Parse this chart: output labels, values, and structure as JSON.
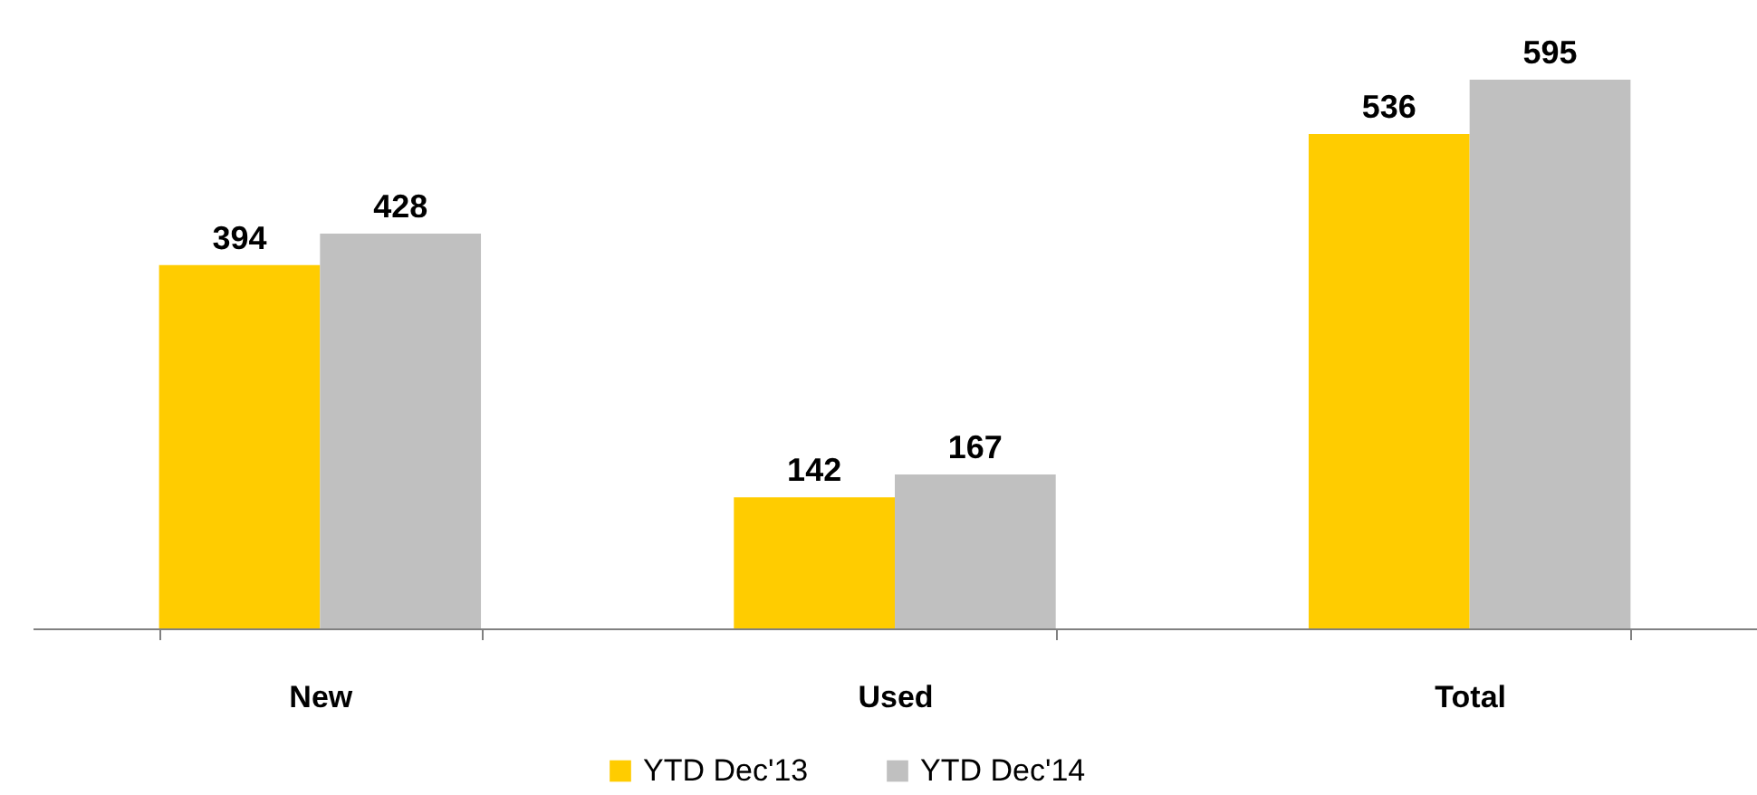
{
  "chart_data": {
    "type": "bar",
    "categories": [
      "New",
      "Used",
      "Total"
    ],
    "series": [
      {
        "name": "YTD Dec'13",
        "color": "#ffcc00",
        "values": [
          394,
          142,
          536
        ]
      },
      {
        "name": "YTD Dec'14",
        "color": "#c0c0c0",
        "values": [
          428,
          167,
          595
        ]
      }
    ],
    "data_labels": true,
    "legend": "bottom"
  }
}
